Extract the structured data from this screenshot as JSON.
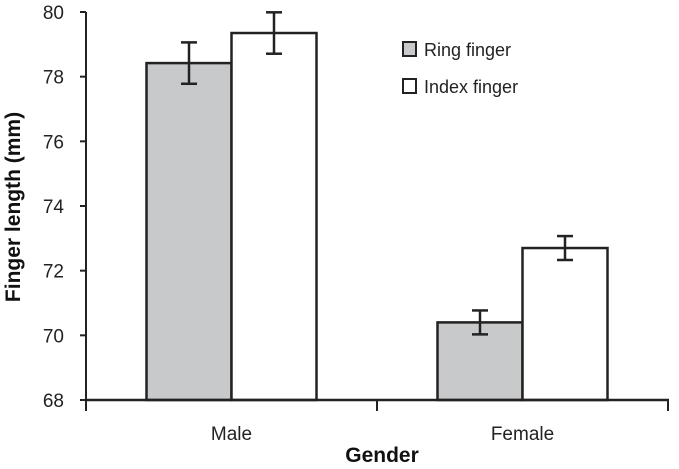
{
  "chart_data": {
    "type": "bar",
    "title": "",
    "xlabel": "Gender",
    "ylabel": "Finger length (mm)",
    "ylim": [
      68,
      80
    ],
    "yticks": [
      68,
      70,
      72,
      74,
      76,
      78,
      80
    ],
    "categories": [
      "Male",
      "Female"
    ],
    "series": [
      {
        "name": "Ring finger",
        "color": "#c8c9cb",
        "values": [
          78.42,
          70.4
        ],
        "errors": [
          0.64,
          0.37
        ]
      },
      {
        "name": "Index finger",
        "color": "#ffffff",
        "values": [
          79.35,
          72.7
        ],
        "errors": [
          0.64,
          0.37
        ]
      }
    ],
    "legend_position": "top-right",
    "grid": false
  }
}
